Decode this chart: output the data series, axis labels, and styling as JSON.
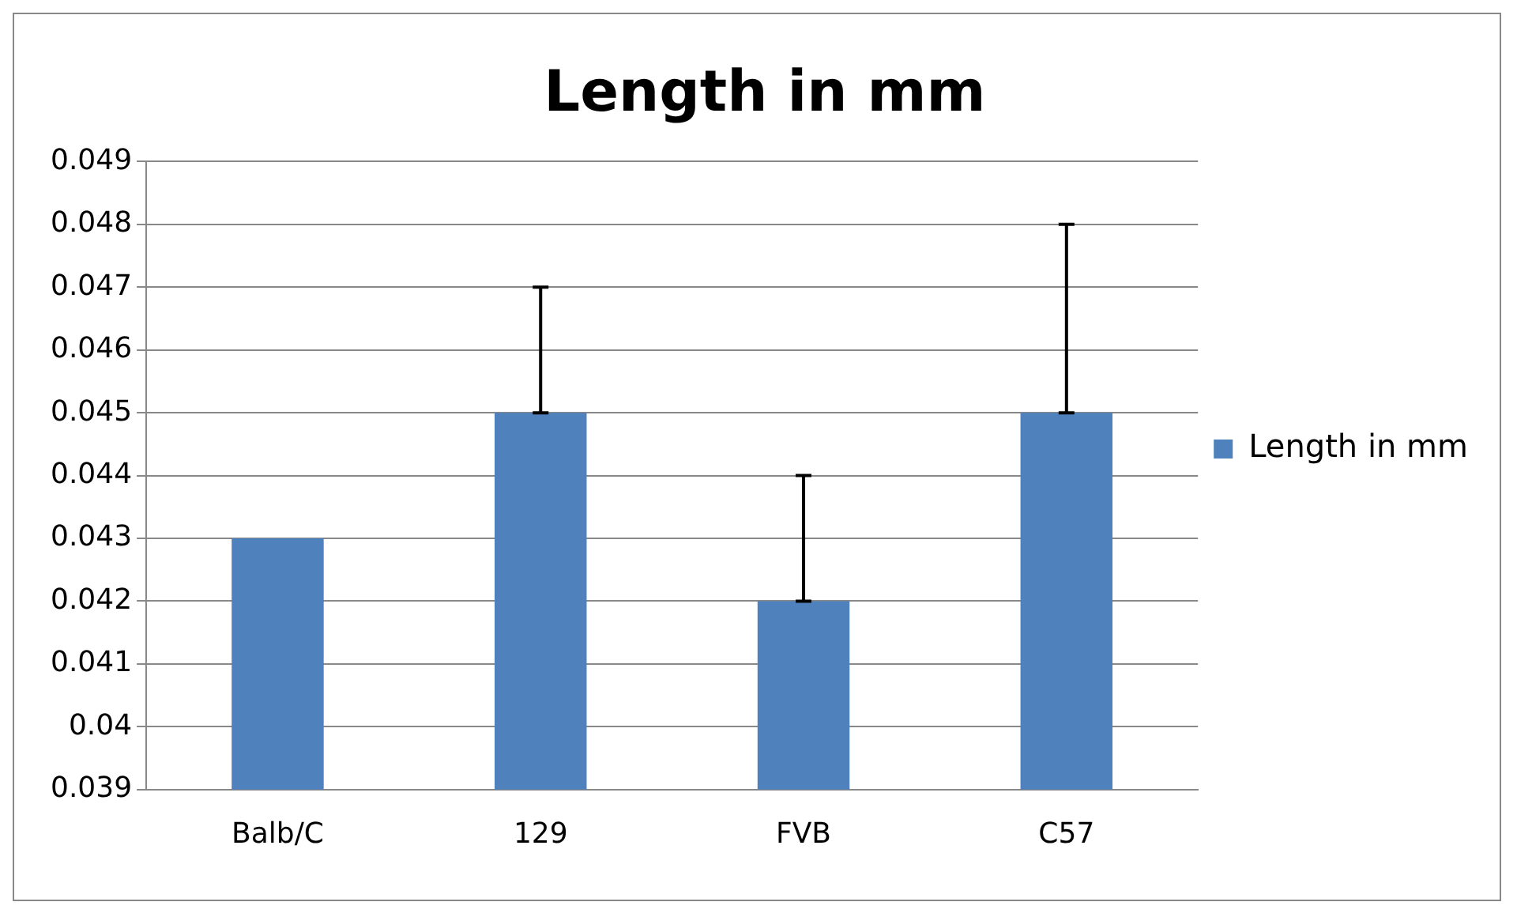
{
  "chart_data": {
    "type": "bar",
    "title": "Length in mm",
    "categories": [
      "Balb/C",
      "129",
      "FVB",
      "C57"
    ],
    "series": [
      {
        "name": "Length in mm",
        "color": "#4f81bd",
        "values": [
          0.043,
          0.045,
          0.042,
          0.045
        ],
        "errors": [
          null,
          [
            0.045,
            0.047
          ],
          [
            0.042,
            0.044
          ],
          [
            0.045,
            0.048
          ]
        ]
      }
    ],
    "ylim": [
      0.039,
      0.049
    ],
    "yticks": [
      0.039,
      0.04,
      0.041,
      0.042,
      0.043,
      0.044,
      0.045,
      0.046,
      0.047,
      0.048,
      0.049
    ],
    "grid": "y",
    "legend": "right"
  }
}
